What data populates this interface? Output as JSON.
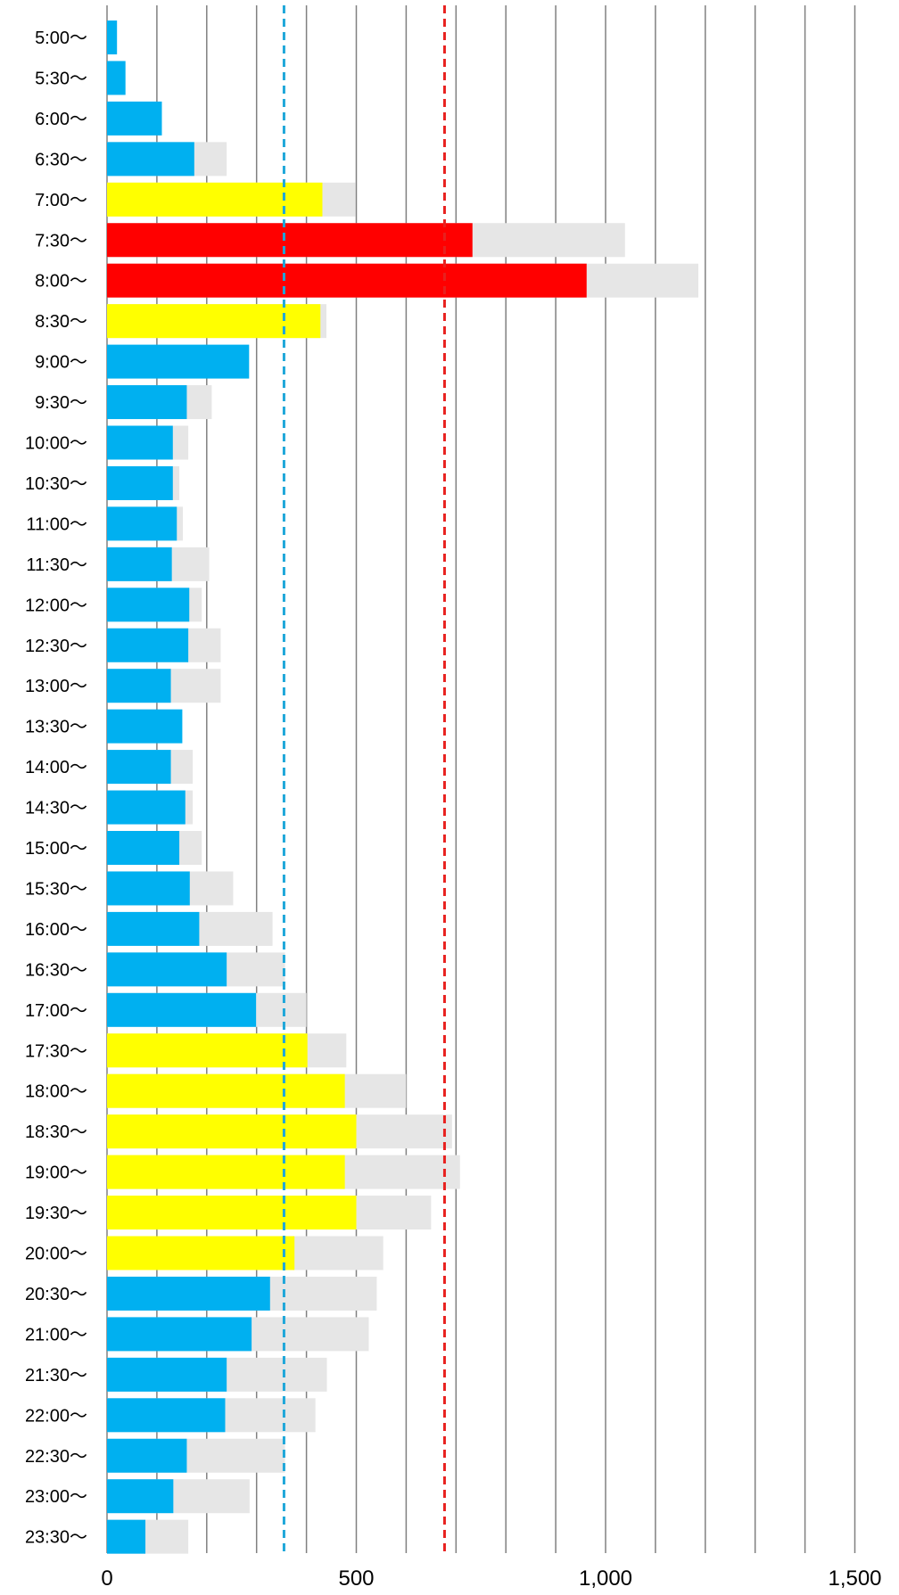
{
  "chart_data": {
    "type": "bar",
    "orientation": "horizontal",
    "stacked": true,
    "title": "",
    "xlabel": "",
    "ylabel": "",
    "grid": true,
    "xlim": [
      0,
      1500
    ],
    "x_tick_labels": [
      "0",
      "500",
      "1,000",
      "1,500"
    ],
    "x_tick_values": [
      0,
      500,
      1000,
      1500
    ],
    "categories": [
      "5:00〜",
      "5:30〜",
      "6:00〜",
      "6:30〜",
      "7:00〜",
      "7:30〜",
      "8:00〜",
      "8:30〜",
      "9:00〜",
      "9:30〜",
      "10:00〜",
      "10:30〜",
      "11:00〜",
      "11:30〜",
      "12:00〜",
      "12:30〜",
      "13:00〜",
      "13:30〜",
      "14:00〜",
      "14:30〜",
      "15:00〜",
      "15:30〜",
      "16:00〜",
      "16:30〜",
      "17:00〜",
      "17:30〜",
      "18:00〜",
      "18:30〜",
      "19:00〜",
      "19:30〜",
      "20:00〜",
      "20:30〜",
      "21:00〜",
      "21:30〜",
      "22:00〜",
      "22:30〜",
      "23:00〜",
      "23:30〜"
    ],
    "primary_values": [
      20,
      37,
      110,
      175,
      432,
      733,
      962,
      428,
      285,
      160,
      132,
      132,
      140,
      130,
      165,
      163,
      128,
      151,
      128,
      157,
      145,
      166,
      185,
      240,
      299,
      402,
      477,
      500,
      477,
      500,
      376,
      327,
      290,
      240,
      237,
      160,
      133,
      77
    ],
    "total_values": [
      20,
      37,
      110,
      240,
      498,
      1039,
      1186,
      440,
      285,
      210,
      163,
      145,
      152,
      205,
      190,
      228,
      228,
      151,
      172,
      172,
      190,
      253,
      332,
      357,
      400,
      480,
      600,
      692,
      708,
      650,
      554,
      541,
      525,
      441,
      418,
      357,
      286,
      163
    ],
    "color_levels": [
      "low",
      "low",
      "low",
      "low",
      "mid",
      "high",
      "high",
      "mid",
      "low",
      "low",
      "low",
      "low",
      "low",
      "low",
      "low",
      "low",
      "low",
      "low",
      "low",
      "low",
      "low",
      "low",
      "low",
      "low",
      "low",
      "mid",
      "mid",
      "mid",
      "mid",
      "mid",
      "mid",
      "low",
      "low",
      "low",
      "low",
      "low",
      "low",
      "low"
    ],
    "colors": {
      "low": "#00B0F0",
      "mid": "#FFFF00",
      "high": "#FF0000",
      "remainder": "#E6E6E6",
      "grid": "#808080"
    },
    "reference_lines": [
      {
        "value": 355,
        "color": "#1FA7D9",
        "style": "dashed"
      },
      {
        "value": 677,
        "color": "#E8211F",
        "style": "dashed"
      }
    ],
    "gridline_values": [
      0,
      100,
      200,
      300,
      400,
      500,
      600,
      700,
      800,
      900,
      1000,
      1100,
      1200,
      1300,
      1400,
      1500
    ]
  }
}
